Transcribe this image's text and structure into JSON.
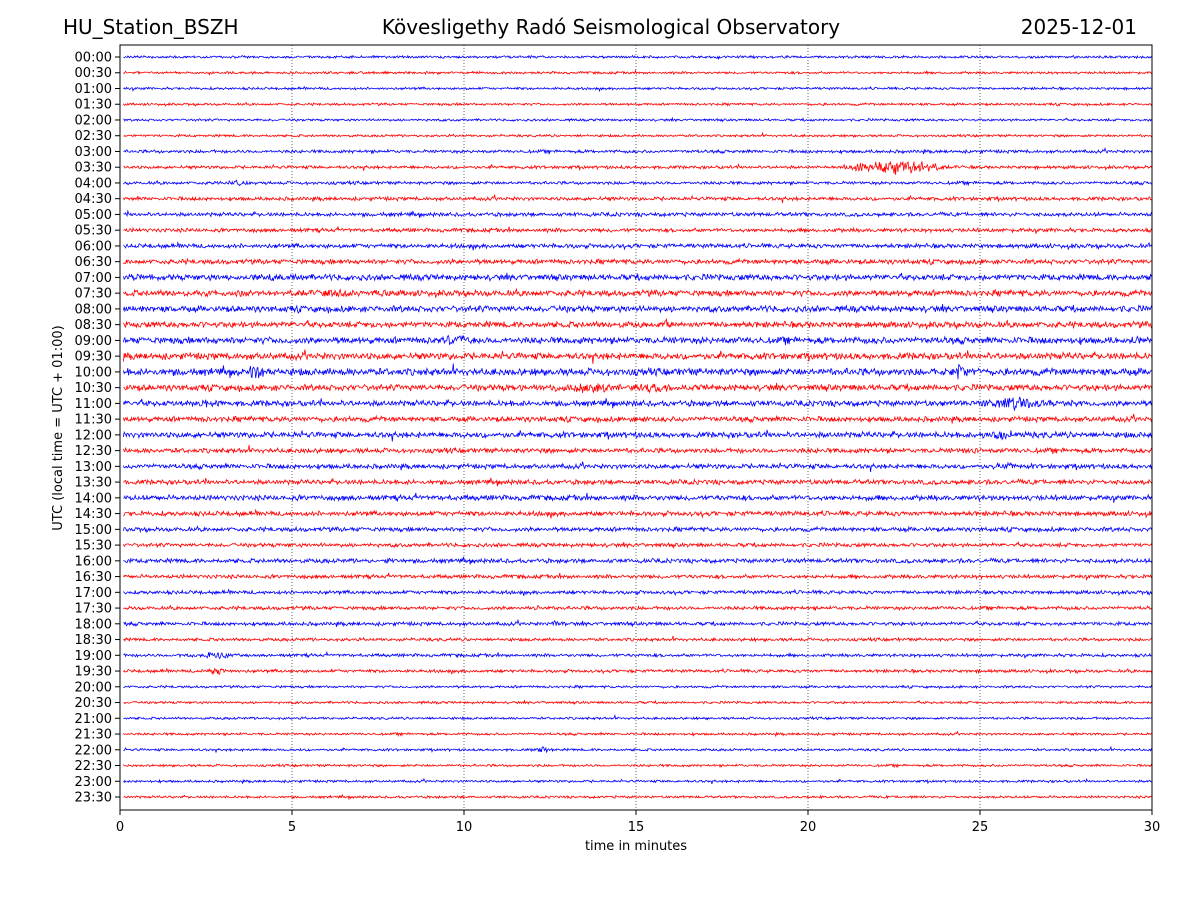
{
  "header": {
    "station": "HU_Station_BSZH",
    "title": "Kövesligethy Radó Seismological Observatory",
    "date": "2025-12-01"
  },
  "chart_data": {
    "type": "line",
    "title": "Kövesligethy Radó Seismological Observatory",
    "xlabel": "time in minutes",
    "ylabel": "UTC (local time = UTC + 01:00)",
    "xlim": [
      0,
      30
    ],
    "xticks": [
      0,
      5,
      10,
      15,
      20,
      25,
      30
    ],
    "grid": "vertical dotted at x ticks",
    "colors": [
      "#0000ff",
      "#ff0000"
    ],
    "rows": [
      "00:00",
      "00:30",
      "01:00",
      "01:30",
      "02:00",
      "02:30",
      "03:00",
      "03:30",
      "04:00",
      "04:30",
      "05:00",
      "05:30",
      "06:00",
      "06:30",
      "07:00",
      "07:30",
      "08:00",
      "08:30",
      "09:00",
      "09:30",
      "10:00",
      "10:30",
      "11:00",
      "11:30",
      "12:00",
      "12:30",
      "13:00",
      "13:30",
      "14:00",
      "14:30",
      "15:00",
      "15:30",
      "16:00",
      "16:30",
      "17:00",
      "17:30",
      "18:00",
      "18:30",
      "19:00",
      "19:30",
      "20:00",
      "20:30",
      "21:00",
      "21:30",
      "22:00",
      "22:30",
      "23:00",
      "23:30"
    ],
    "noise_level": [
      1,
      1,
      1,
      1,
      1,
      1,
      1.3,
      1.3,
      1.3,
      1.5,
      1.6,
      1.6,
      1.8,
      2,
      2.5,
      2.5,
      2.6,
      2.5,
      2.8,
      2.8,
      3,
      2.6,
      2.4,
      2.2,
      2.4,
      2,
      2,
      2,
      2.2,
      2,
      1.8,
      1.6,
      1.8,
      1.6,
      1.5,
      1.5,
      1.5,
      1.3,
      1.3,
      1.3,
      1,
      1,
      1,
      1,
      1,
      1,
      1,
      1
    ],
    "events": [
      {
        "row": "03:30",
        "minute": 22.7,
        "amplitude": 10,
        "duration": 2.5
      },
      {
        "row": "03:30",
        "minute": 21.5,
        "amplitude": 5,
        "duration": 1.5
      },
      {
        "row": "04:00",
        "minute": 3.4,
        "amplitude": 4,
        "duration": 1
      },
      {
        "row": "07:00",
        "minute": 0.5,
        "amplitude": 4,
        "duration": 1
      },
      {
        "row": "07:00",
        "minute": 4.2,
        "amplitude": 5,
        "duration": 1.5
      },
      {
        "row": "07:30",
        "minute": 6.5,
        "amplitude": 5,
        "duration": 2
      },
      {
        "row": "07:30",
        "minute": 3.5,
        "amplitude": 4,
        "duration": 2
      },
      {
        "row": "08:30",
        "minute": 15.9,
        "amplitude": 6,
        "duration": 0.8
      },
      {
        "row": "09:00",
        "minute": 9.8,
        "amplitude": 8,
        "duration": 1
      },
      {
        "row": "09:00",
        "minute": 29.5,
        "amplitude": 6,
        "duration": 0.6
      },
      {
        "row": "10:00",
        "minute": 4.0,
        "amplitude": 9,
        "duration": 0.8
      },
      {
        "row": "10:00",
        "minute": 24.4,
        "amplitude": 9,
        "duration": 0.8
      },
      {
        "row": "10:30",
        "minute": 13.5,
        "amplitude": 6,
        "duration": 3
      },
      {
        "row": "10:30",
        "minute": 15.5,
        "amplitude": 6,
        "duration": 1.5
      },
      {
        "row": "11:00",
        "minute": 2.5,
        "amplitude": 5,
        "duration": 1
      },
      {
        "row": "11:00",
        "minute": 26.0,
        "amplitude": 7,
        "duration": 3
      },
      {
        "row": "11:30",
        "minute": 15.3,
        "amplitude": 5,
        "duration": 0.4
      },
      {
        "row": "12:00",
        "minute": 25.6,
        "amplitude": 6,
        "duration": 1
      },
      {
        "row": "12:30",
        "minute": 24.8,
        "amplitude": 5,
        "duration": 0.5
      },
      {
        "row": "13:00",
        "minute": 25.8,
        "amplitude": 4,
        "duration": 0.6
      },
      {
        "row": "16:00",
        "minute": 7.8,
        "amplitude": 4,
        "duration": 0.4
      },
      {
        "row": "17:30",
        "minute": 12.2,
        "amplitude": 4,
        "duration": 0.4
      },
      {
        "row": "18:00",
        "minute": 12.7,
        "amplitude": 4,
        "duration": 0.4
      },
      {
        "row": "19:00",
        "minute": 2.8,
        "amplitude": 4,
        "duration": 1.6
      },
      {
        "row": "19:30",
        "minute": 2.8,
        "amplitude": 5,
        "duration": 0.6
      },
      {
        "row": "22:00",
        "minute": 12.3,
        "amplitude": 4,
        "duration": 0.5
      }
    ]
  }
}
